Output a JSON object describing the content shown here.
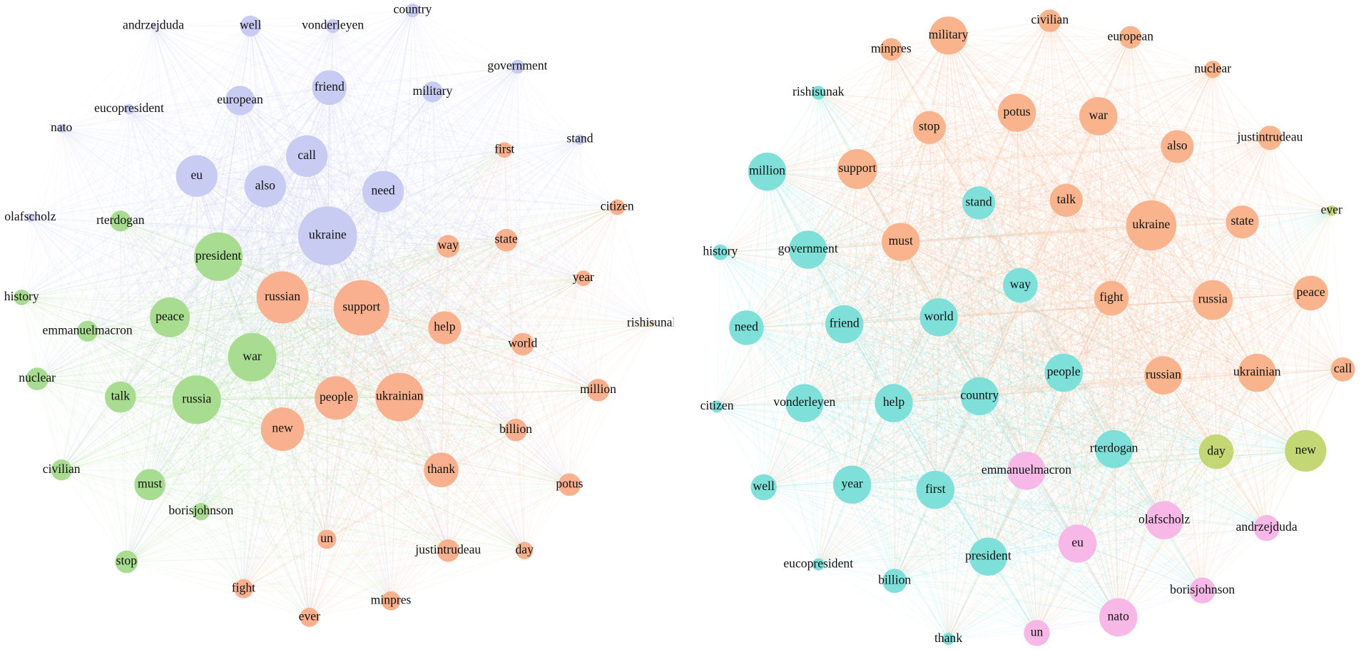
{
  "graphs": [
    {
      "nodes": [
        {
          "label": "andrzejduda",
          "color": "#c8cbf2"
        },
        {
          "label": "well",
          "color": "#c8cbf2"
        },
        {
          "label": "vonderleyen",
          "color": "#c8cbf2"
        },
        {
          "label": "country",
          "color": "#c8cbf2"
        },
        {
          "label": "government",
          "color": "#c8cbf2"
        },
        {
          "label": "military",
          "color": "#c8cbf2"
        },
        {
          "label": "friend",
          "color": "#c8cbf2"
        },
        {
          "label": "european",
          "color": "#c8cbf2"
        },
        {
          "label": "eucopresident",
          "color": "#c8cbf2"
        },
        {
          "label": "nato",
          "color": "#c8cbf2"
        },
        {
          "label": "stand",
          "color": "#c8cbf2"
        },
        {
          "label": "eu",
          "color": "#c8cbf2"
        },
        {
          "label": "call",
          "color": "#c8cbf2"
        },
        {
          "label": "also",
          "color": "#c8cbf2"
        },
        {
          "label": "need",
          "color": "#c8cbf2"
        },
        {
          "label": "ukraine",
          "color": "#c8cbf2"
        },
        {
          "label": "olafscholz",
          "color": "#c8cbf2"
        },
        {
          "label": "rterdogan",
          "color": "#a8dc90"
        },
        {
          "label": "president",
          "color": "#a8dc90"
        },
        {
          "label": "history",
          "color": "#a8dc90"
        },
        {
          "label": "peace",
          "color": "#a8dc90"
        },
        {
          "label": "emmanuelmacron",
          "color": "#a8dc90"
        },
        {
          "label": "war",
          "color": "#a8dc90"
        },
        {
          "label": "nuclear",
          "color": "#a8dc90"
        },
        {
          "label": "talk",
          "color": "#a8dc90"
        },
        {
          "label": "russia",
          "color": "#a8dc90"
        },
        {
          "label": "civilian",
          "color": "#a8dc90"
        },
        {
          "label": "must",
          "color": "#a8dc90"
        },
        {
          "label": "borisjohnson",
          "color": "#a8dc90"
        },
        {
          "label": "stop",
          "color": "#a8dc90"
        },
        {
          "label": "first",
          "color": "#f8b08e"
        },
        {
          "label": "citizen",
          "color": "#f8b08e"
        },
        {
          "label": "way",
          "color": "#f8b08e"
        },
        {
          "label": "state",
          "color": "#f8b08e"
        },
        {
          "label": "year",
          "color": "#f8b08e"
        },
        {
          "label": "russian",
          "color": "#f8b08e"
        },
        {
          "label": "support",
          "color": "#f8b08e"
        },
        {
          "label": "help",
          "color": "#f8b08e"
        },
        {
          "label": "world",
          "color": "#f8b08e"
        },
        {
          "label": "rishisunak",
          "color": "#f8b08e"
        },
        {
          "label": "million",
          "color": "#f8b08e"
        },
        {
          "label": "people",
          "color": "#f8b08e"
        },
        {
          "label": "ukrainian",
          "color": "#f8b08e"
        },
        {
          "label": "new",
          "color": "#f8b08e"
        },
        {
          "label": "billion",
          "color": "#f8b08e"
        },
        {
          "label": "thank",
          "color": "#f8b08e"
        },
        {
          "label": "potus",
          "color": "#f8b08e"
        },
        {
          "label": "un",
          "color": "#f8b08e"
        },
        {
          "label": "justintrudeau",
          "color": "#f8b08e"
        },
        {
          "label": "day",
          "color": "#f8b08e"
        },
        {
          "label": "fight",
          "color": "#f8b08e"
        },
        {
          "label": "ever",
          "color": "#f8b08e"
        },
        {
          "label": "minpres",
          "color": "#f8b08e"
        }
      ]
    },
    {
      "nodes": [
        {
          "label": "military",
          "color": "#f9b48e"
        },
        {
          "label": "civilian",
          "color": "#f9b48e"
        },
        {
          "label": "european",
          "color": "#f9b48e"
        },
        {
          "label": "minpres",
          "color": "#f9b48e"
        },
        {
          "label": "nuclear",
          "color": "#f9b48e"
        },
        {
          "label": "potus",
          "color": "#f9b48e"
        },
        {
          "label": "war",
          "color": "#f9b48e"
        },
        {
          "label": "stop",
          "color": "#f9b48e"
        },
        {
          "label": "also",
          "color": "#f9b48e"
        },
        {
          "label": "justintrudeau",
          "color": "#f9b48e"
        },
        {
          "label": "support",
          "color": "#f9b48e"
        },
        {
          "label": "talk",
          "color": "#f9b48e"
        },
        {
          "label": "must",
          "color": "#f9b48e"
        },
        {
          "label": "ukraine",
          "color": "#f9b48e"
        },
        {
          "label": "state",
          "color": "#f9b48e"
        },
        {
          "label": "fight",
          "color": "#f9b48e"
        },
        {
          "label": "russia",
          "color": "#f9b48e"
        },
        {
          "label": "peace",
          "color": "#f9b48e"
        },
        {
          "label": "russian",
          "color": "#f9b48e"
        },
        {
          "label": "ukrainian",
          "color": "#f9b48e"
        },
        {
          "label": "call",
          "color": "#f9b48e"
        },
        {
          "label": "rishisunak",
          "color": "#7fe0da"
        },
        {
          "label": "million",
          "color": "#7fe0da"
        },
        {
          "label": "stand",
          "color": "#7fe0da"
        },
        {
          "label": "history",
          "color": "#7fe0da"
        },
        {
          "label": "government",
          "color": "#7fe0da"
        },
        {
          "label": "way",
          "color": "#7fe0da"
        },
        {
          "label": "need",
          "color": "#7fe0da"
        },
        {
          "label": "friend",
          "color": "#7fe0da"
        },
        {
          "label": "world",
          "color": "#7fe0da"
        },
        {
          "label": "people",
          "color": "#7fe0da"
        },
        {
          "label": "citizen",
          "color": "#7fe0da"
        },
        {
          "label": "vonderleyen",
          "color": "#7fe0da"
        },
        {
          "label": "help",
          "color": "#7fe0da"
        },
        {
          "label": "country",
          "color": "#7fe0da"
        },
        {
          "label": "rterdogan",
          "color": "#7fe0da"
        },
        {
          "label": "well",
          "color": "#7fe0da"
        },
        {
          "label": "year",
          "color": "#7fe0da"
        },
        {
          "label": "first",
          "color": "#7fe0da"
        },
        {
          "label": "eucopresident",
          "color": "#7fe0da"
        },
        {
          "label": "billion",
          "color": "#7fe0da"
        },
        {
          "label": "president",
          "color": "#7fe0da"
        },
        {
          "label": "thank",
          "color": "#7fe0da"
        },
        {
          "label": "ever",
          "color": "#c3d874"
        },
        {
          "label": "day",
          "color": "#c3d874"
        },
        {
          "label": "new",
          "color": "#c3d874"
        },
        {
          "label": "emmanuelmacron",
          "color": "#f7b8e8"
        },
        {
          "label": "olafscholz",
          "color": "#f7b8e8"
        },
        {
          "label": "andrzejduda",
          "color": "#f7b8e8"
        },
        {
          "label": "eu",
          "color": "#f7b8e8"
        },
        {
          "label": "borisjohnson",
          "color": "#f7b8e8"
        },
        {
          "label": "nato",
          "color": "#f7b8e8"
        },
        {
          "label": "un",
          "color": "#f7b8e8"
        }
      ]
    }
  ]
}
